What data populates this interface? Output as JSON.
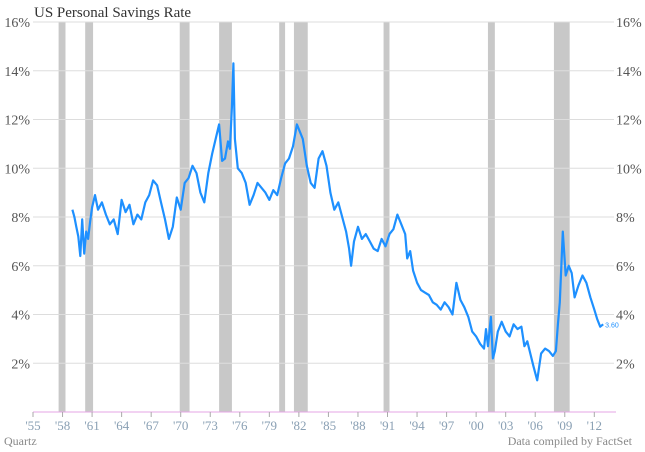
{
  "chart_data": {
    "type": "line",
    "title": "US Personal Savings Rate",
    "xlabel": "",
    "ylabel": "",
    "xlim": [
      1955,
      2014
    ],
    "ylim": [
      0,
      16
    ],
    "y_ticks": [
      2,
      4,
      6,
      8,
      10,
      12,
      14,
      16
    ],
    "y_tick_labels": [
      "2%",
      "4%",
      "6%",
      "8%",
      "10%",
      "12%",
      "14%",
      "16%"
    ],
    "y_axes": [
      "left",
      "right"
    ],
    "x_ticks": [
      1955,
      1958,
      1961,
      1964,
      1967,
      1970,
      1973,
      1976,
      1979,
      1982,
      1985,
      1988,
      1991,
      1994,
      1997,
      2000,
      2003,
      2006,
      2009,
      2012
    ],
    "x_tick_labels": [
      "'55",
      "'58",
      "'61",
      "'64",
      "'67",
      "'70",
      "'73",
      "'76",
      "'79",
      "'82",
      "'85",
      "'88",
      "'91",
      "'94",
      "'97",
      "'00",
      "'03",
      "'06",
      "'09",
      "'12"
    ],
    "grid": "horizontal",
    "colors": {
      "line": "#1e90ff",
      "recession": "#c8c8c8",
      "grid": "#dddddd",
      "baseline": "#e6a6e6"
    },
    "recessions": [
      [
        1957.6,
        1958.3
      ],
      [
        1960.3,
        1961.1
      ],
      [
        1969.9,
        1970.9
      ],
      [
        1973.9,
        1975.2
      ],
      [
        1980.0,
        1980.6
      ],
      [
        1981.5,
        1982.9
      ],
      [
        1990.6,
        1991.2
      ],
      [
        2001.2,
        2001.9
      ],
      [
        2007.9,
        2009.5
      ]
    ],
    "series": [
      {
        "x": [
          1959.0,
          1959.2,
          1959.4,
          1959.6,
          1959.8,
          1960.0,
          1960.2,
          1960.4,
          1960.6,
          1960.8,
          1961.0,
          1961.3,
          1961.6,
          1962.0,
          1962.4,
          1962.8,
          1963.2,
          1963.6,
          1964.0,
          1964.4,
          1964.8,
          1965.2,
          1965.6,
          1966.0,
          1966.4,
          1966.8,
          1967.2,
          1967.6,
          1968.0,
          1968.4,
          1968.8,
          1969.2,
          1969.6,
          1970.0,
          1970.4,
          1970.8,
          1971.2,
          1971.6,
          1972.0,
          1972.4,
          1972.8,
          1973.2,
          1973.6,
          1973.9,
          1974.2,
          1974.5,
          1974.8,
          1975.0,
          1975.2,
          1975.35,
          1975.5,
          1975.8,
          1976.2,
          1976.6,
          1977.0,
          1977.4,
          1977.8,
          1978.2,
          1978.6,
          1979.0,
          1979.4,
          1979.8,
          1980.2,
          1980.6,
          1981.0,
          1981.4,
          1981.8,
          1982.0,
          1982.4,
          1982.8,
          1983.2,
          1983.6,
          1984.0,
          1984.4,
          1984.8,
          1985.2,
          1985.6,
          1986.0,
          1986.4,
          1986.8,
          1987.1,
          1987.3,
          1987.6,
          1988.0,
          1988.4,
          1988.8,
          1989.2,
          1989.6,
          1990.0,
          1990.4,
          1990.8,
          1991.2,
          1991.6,
          1992.0,
          1992.4,
          1992.8,
          1993.0,
          1993.3,
          1993.6,
          1994.0,
          1994.4,
          1994.8,
          1995.2,
          1995.6,
          1996.0,
          1996.4,
          1996.8,
          1997.2,
          1997.6,
          1998.0,
          1998.4,
          1998.8,
          1999.2,
          1999.6,
          2000.0,
          2000.4,
          2000.8,
          2001.0,
          2001.2,
          2001.5,
          2001.7,
          2001.9,
          2002.2,
          2002.6,
          2003.0,
          2003.4,
          2003.8,
          2004.2,
          2004.6,
          2004.9,
          2005.2,
          2005.5,
          2005.8,
          2006.2,
          2006.6,
          2007.0,
          2007.4,
          2007.8,
          2008.1,
          2008.3,
          2008.5,
          2008.8,
          2009.1,
          2009.4,
          2009.7,
          2010.0,
          2010.4,
          2010.8,
          2011.2,
          2011.6,
          2012.0,
          2012.3,
          2012.6,
          2012.9
        ],
        "y": [
          8.3,
          8.0,
          7.6,
          7.2,
          6.4,
          7.9,
          6.5,
          7.4,
          7.1,
          7.8,
          8.4,
          8.9,
          8.3,
          8.6,
          8.1,
          7.7,
          7.9,
          7.3,
          8.7,
          8.2,
          8.5,
          7.7,
          8.1,
          7.9,
          8.6,
          8.9,
          9.5,
          9.3,
          8.6,
          7.9,
          7.1,
          7.6,
          8.8,
          8.3,
          9.4,
          9.6,
          10.1,
          9.8,
          9.0,
          8.6,
          9.8,
          10.6,
          11.3,
          11.8,
          10.3,
          10.4,
          11.1,
          10.8,
          12.5,
          14.3,
          11.2,
          10.0,
          9.8,
          9.4,
          8.5,
          8.9,
          9.4,
          9.2,
          9.0,
          8.7,
          9.1,
          8.9,
          9.6,
          10.2,
          10.4,
          10.9,
          11.8,
          11.6,
          11.2,
          10.1,
          9.4,
          9.2,
          10.4,
          10.7,
          10.1,
          9.0,
          8.3,
          8.6,
          8.0,
          7.4,
          6.7,
          6.0,
          7.0,
          7.6,
          7.1,
          7.3,
          7.0,
          6.7,
          6.6,
          7.1,
          6.8,
          7.3,
          7.5,
          8.1,
          7.7,
          7.3,
          6.3,
          6.6,
          5.8,
          5.3,
          5.0,
          4.9,
          4.8,
          4.5,
          4.4,
          4.2,
          4.5,
          4.3,
          4.0,
          5.3,
          4.6,
          4.3,
          3.9,
          3.3,
          3.1,
          2.8,
          2.6,
          3.4,
          2.7,
          3.9,
          2.2,
          2.5,
          3.3,
          3.7,
          3.3,
          3.1,
          3.6,
          3.4,
          3.5,
          2.7,
          2.9,
          2.4,
          1.9,
          1.3,
          2.4,
          2.6,
          2.5,
          2.3,
          2.5,
          3.6,
          4.5,
          7.4,
          5.6,
          6.0,
          5.7,
          4.7,
          5.2,
          5.6,
          5.3,
          4.7,
          4.2,
          3.8,
          3.5,
          3.6
        ]
      }
    ],
    "end_label": "3.60",
    "source_left": "Quartz",
    "source_right": "Data compiled by FactSet"
  }
}
